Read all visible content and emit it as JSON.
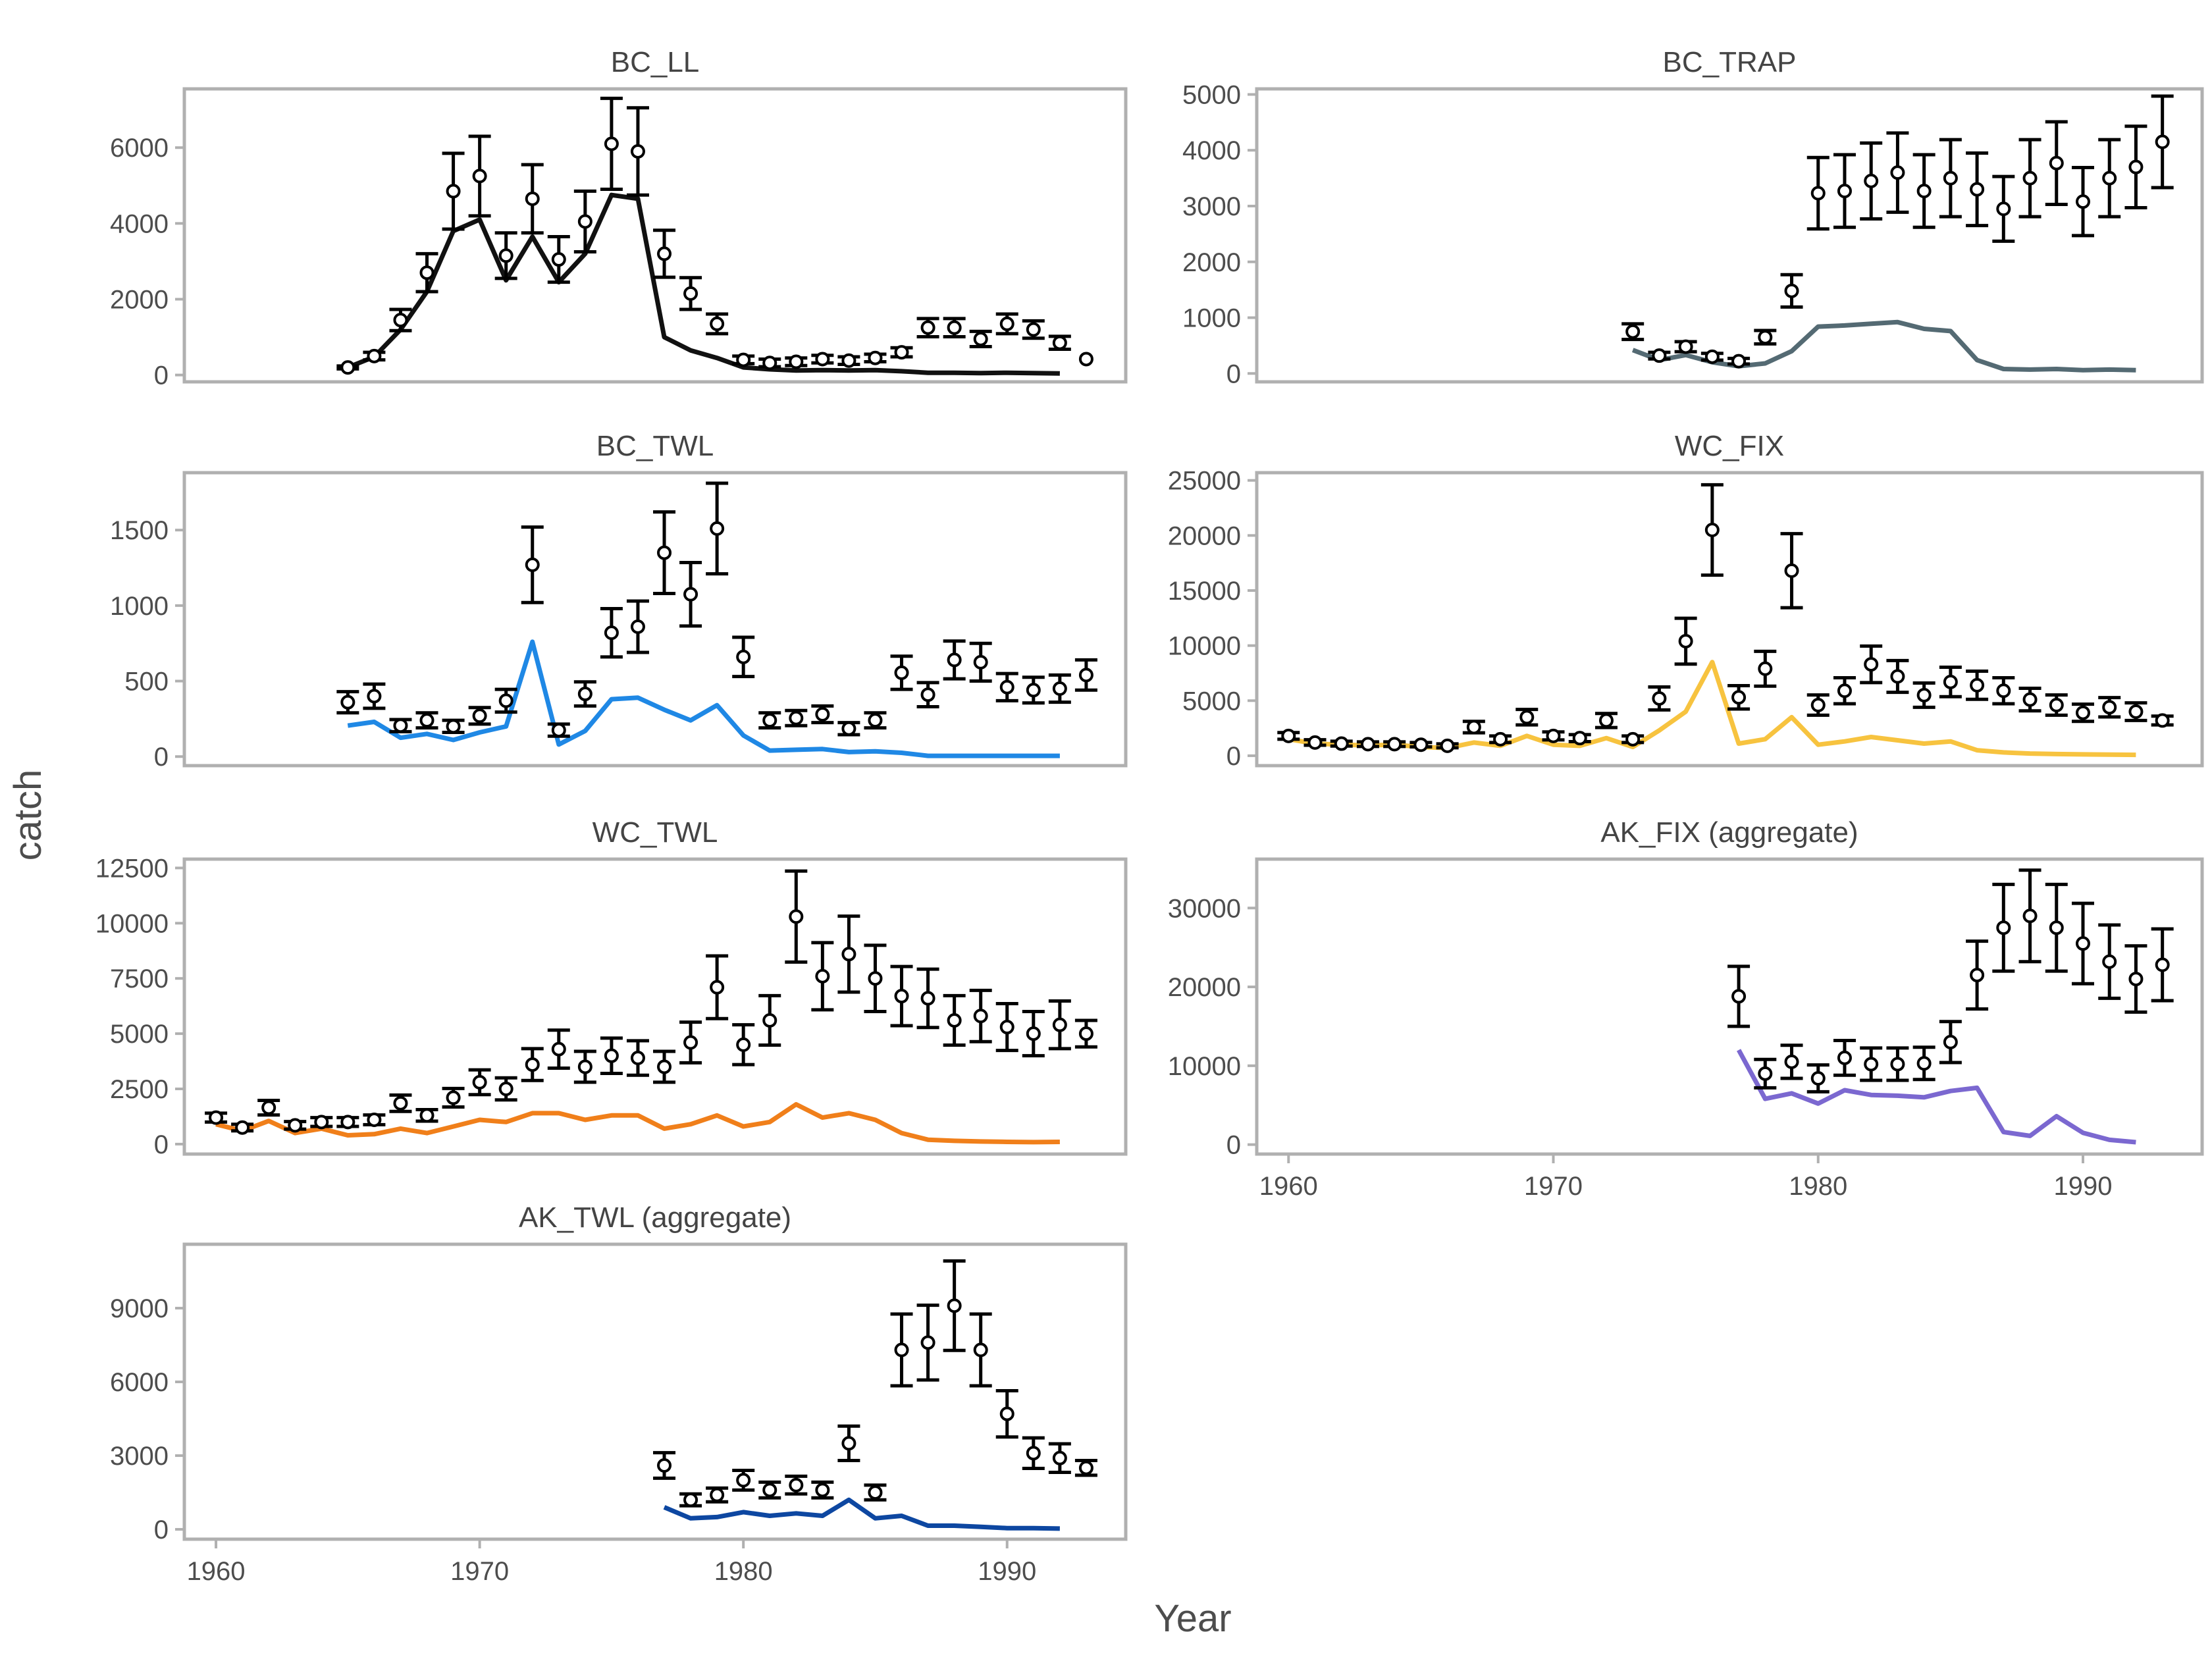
{
  "chart_data": {
    "type": "line",
    "xlabel": "Year",
    "ylabel": "catch",
    "x_ticks": [
      1960,
      1970,
      1980,
      1990
    ],
    "xlim": [
      1958.8,
      1994.5
    ],
    "series_legend": {
      "observed": "points with error bars",
      "predicted": "colored line"
    },
    "panels": [
      {
        "title": "BC_LL",
        "color": "#111111",
        "ylim": [
          -180,
          7550
        ],
        "y_ticks": [
          0,
          2000,
          4000,
          6000
        ],
        "observed": {
          "years": [
            1965,
            1966,
            1967,
            1968,
            1969,
            1970,
            1971,
            1972,
            1973,
            1974,
            1975,
            1976,
            1977,
            1978,
            1979,
            1980,
            1981,
            1982,
            1983,
            1984,
            1985,
            1986,
            1987,
            1988,
            1989,
            1990,
            1991,
            1992,
            1993
          ],
          "values": [
            200,
            500,
            1450,
            2700,
            4850,
            5250,
            3150,
            4650,
            3050,
            4050,
            6100,
            5900,
            3200,
            2150,
            1350,
            400,
            320,
            350,
            420,
            380,
            450,
            600,
            1250,
            1250,
            950,
            1350,
            1200,
            850,
            420
          ],
          "errors": [
            40,
            100,
            280,
            500,
            1000,
            1050,
            600,
            900,
            600,
            800,
            1200,
            1150,
            620,
            420,
            260,
            100,
            100,
            100,
            100,
            100,
            100,
            120,
            240,
            240,
            200,
            260,
            230,
            170,
            0
          ]
        },
        "predicted": {
          "years": [
            1965,
            1966,
            1967,
            1968,
            1969,
            1970,
            1971,
            1972,
            1973,
            1974,
            1975,
            1976,
            1977,
            1978,
            1979,
            1980,
            1981,
            1982,
            1983,
            1984,
            1985,
            1986,
            1987,
            1988,
            1989,
            1990,
            1991,
            1992
          ],
          "values": [
            200,
            480,
            1200,
            2200,
            3800,
            4100,
            2500,
            3650,
            2450,
            3200,
            4750,
            4650,
            1000,
            650,
            450,
            200,
            150,
            120,
            130,
            120,
            130,
            100,
            60,
            60,
            50,
            60,
            50,
            40
          ]
        }
      },
      {
        "title": "BC_TRAP",
        "color": "#546a73",
        "ylim": [
          -150,
          5100
        ],
        "y_ticks": [
          0,
          1000,
          2000,
          3000,
          4000,
          5000
        ],
        "observed": {
          "years": [
            1973,
            1974,
            1975,
            1976,
            1977,
            1978,
            1979,
            1980,
            1981,
            1982,
            1983,
            1984,
            1985,
            1986,
            1987,
            1988,
            1989,
            1990,
            1991,
            1992,
            1993
          ],
          "values": [
            750,
            320,
            480,
            300,
            220,
            650,
            1480,
            3230,
            3270,
            3450,
            3600,
            3270,
            3500,
            3300,
            2950,
            3500,
            3770,
            3080,
            3500,
            3700,
            4150
          ],
          "errors": [
            140,
            60,
            90,
            60,
            50,
            120,
            290,
            640,
            650,
            680,
            710,
            650,
            690,
            650,
            580,
            690,
            740,
            610,
            690,
            730,
            820
          ]
        },
        "predicted": {
          "years": [
            1973,
            1974,
            1975,
            1976,
            1977,
            1978,
            1979,
            1980,
            1981,
            1982,
            1983,
            1984,
            1985,
            1986,
            1987,
            1988,
            1989,
            1990,
            1991,
            1992
          ],
          "values": [
            420,
            240,
            330,
            200,
            130,
            180,
            400,
            840,
            860,
            890,
            920,
            800,
            760,
            240,
            80,
            70,
            80,
            60,
            70,
            60
          ]
        }
      },
      {
        "title": "BC_TWL",
        "color": "#1f88e5",
        "ylim": [
          -60,
          1880
        ],
        "y_ticks": [
          0,
          500,
          1000,
          1500
        ],
        "observed": {
          "years": [
            1965,
            1966,
            1967,
            1968,
            1969,
            1970,
            1971,
            1972,
            1973,
            1974,
            1975,
            1976,
            1977,
            1978,
            1979,
            1980,
            1981,
            1982,
            1983,
            1984,
            1985,
            1986,
            1987,
            1988,
            1989,
            1990,
            1991,
            1992,
            1993
          ],
          "values": [
            360,
            400,
            205,
            240,
            200,
            270,
            370,
            1270,
            175,
            415,
            820,
            860,
            1350,
            1075,
            1510,
            660,
            240,
            255,
            280,
            185,
            240,
            555,
            410,
            640,
            625,
            460,
            440,
            450,
            540
          ],
          "errors": [
            70,
            80,
            40,
            50,
            40,
            55,
            75,
            250,
            40,
            80,
            160,
            170,
            270,
            210,
            300,
            130,
            50,
            50,
            55,
            40,
            50,
            110,
            80,
            125,
            125,
            90,
            85,
            90,
            100
          ]
        },
        "predicted": {
          "years": [
            1965,
            1966,
            1967,
            1968,
            1969,
            1970,
            1971,
            1972,
            1973,
            1974,
            1975,
            1976,
            1977,
            1978,
            1979,
            1980,
            1981,
            1982,
            1983,
            1984,
            1985,
            1986,
            1987,
            1988,
            1989,
            1990,
            1991,
            1992
          ],
          "values": [
            205,
            230,
            125,
            150,
            110,
            160,
            200,
            760,
            80,
            170,
            380,
            390,
            310,
            240,
            340,
            140,
            40,
            45,
            50,
            30,
            35,
            25,
            5,
            5,
            5,
            5,
            5,
            5
          ]
        }
      },
      {
        "title": "WC_FIX",
        "color": "#f7c33f",
        "ylim": [
          -900,
          25700
        ],
        "y_ticks": [
          0,
          5000,
          10000,
          15000,
          20000,
          25000
        ],
        "observed": {
          "years": [
            1960,
            1961,
            1962,
            1963,
            1964,
            1965,
            1966,
            1967,
            1968,
            1969,
            1970,
            1971,
            1972,
            1973,
            1974,
            1975,
            1976,
            1977,
            1978,
            1979,
            1980,
            1981,
            1982,
            1983,
            1984,
            1985,
            1986,
            1987,
            1988,
            1989,
            1990,
            1991,
            1992,
            1993
          ],
          "values": [
            1800,
            1200,
            1100,
            1050,
            1050,
            1000,
            900,
            2600,
            1500,
            3500,
            1800,
            1600,
            3200,
            1500,
            5200,
            10400,
            20500,
            5300,
            7900,
            16800,
            4600,
            5900,
            8300,
            7200,
            5500,
            6700,
            6400,
            5900,
            5100,
            4600,
            3900,
            4400,
            4000,
            3200
          ],
          "errors": [
            300,
            250,
            220,
            210,
            210,
            200,
            180,
            520,
            300,
            700,
            360,
            320,
            640,
            300,
            1040,
            2080,
            4100,
            1060,
            1580,
            3360,
            920,
            1180,
            1660,
            1440,
            1100,
            1340,
            1280,
            1180,
            1020,
            920,
            780,
            880,
            800,
            400
          ]
        },
        "predicted": {
          "years": [
            1960,
            1961,
            1962,
            1963,
            1964,
            1965,
            1966,
            1967,
            1968,
            1969,
            1970,
            1971,
            1972,
            1973,
            1974,
            1975,
            1976,
            1977,
            1978,
            1979,
            1980,
            1981,
            1982,
            1983,
            1984,
            1985,
            1986,
            1987,
            1988,
            1989,
            1990,
            1991,
            1992
          ],
          "values": [
            1500,
            1100,
            1000,
            950,
            1000,
            800,
            700,
            1200,
            900,
            1800,
            1000,
            900,
            1600,
            800,
            2300,
            4000,
            8500,
            1100,
            1500,
            3500,
            1000,
            1300,
            1700,
            1400,
            1100,
            1300,
            500,
            300,
            200,
            150,
            120,
            100,
            80
          ]
        }
      },
      {
        "title": "WC_TWL",
        "color": "#f07f1a",
        "ylim": [
          -450,
          12900
        ],
        "y_ticks": [
          0,
          2500,
          5000,
          7500,
          10000,
          12500
        ],
        "observed": {
          "years": [
            1960,
            1961,
            1962,
            1963,
            1964,
            1965,
            1966,
            1967,
            1968,
            1969,
            1970,
            1971,
            1972,
            1973,
            1974,
            1975,
            1976,
            1977,
            1978,
            1979,
            1980,
            1981,
            1982,
            1983,
            1984,
            1985,
            1986,
            1987,
            1988,
            1989,
            1990,
            1991,
            1992,
            1993
          ],
          "values": [
            1200,
            750,
            1650,
            850,
            1000,
            1000,
            1100,
            1850,
            1300,
            2100,
            2800,
            2500,
            3600,
            4300,
            3500,
            4000,
            3900,
            3500,
            4600,
            7100,
            4500,
            5600,
            10300,
            7600,
            8600,
            7500,
            6700,
            6600,
            5600,
            5800,
            5300,
            5000,
            5400,
            5000
          ],
          "errors": [
            200,
            150,
            330,
            170,
            200,
            200,
            220,
            370,
            260,
            420,
            560,
            500,
            720,
            860,
            700,
            800,
            780,
            700,
            920,
            1420,
            900,
            1120,
            2060,
            1520,
            1720,
            1500,
            1340,
            1320,
            1120,
            1160,
            1060,
            1000,
            1080,
            600
          ]
        },
        "predicted": {
          "years": [
            1960,
            1961,
            1962,
            1963,
            1964,
            1965,
            1966,
            1967,
            1968,
            1969,
            1970,
            1971,
            1972,
            1973,
            1974,
            1975,
            1976,
            1977,
            1978,
            1979,
            1980,
            1981,
            1982,
            1983,
            1984,
            1985,
            1986,
            1987,
            1988,
            1989,
            1990,
            1991,
            1992
          ],
          "values": [
            900,
            600,
            1050,
            500,
            700,
            400,
            450,
            700,
            500,
            800,
            1100,
            1000,
            1400,
            1400,
            1100,
            1300,
            1300,
            700,
            900,
            1300,
            800,
            1000,
            1800,
            1200,
            1400,
            1100,
            500,
            200,
            150,
            120,
            100,
            90,
            100
          ]
        }
      },
      {
        "title": "AK_FIX (aggregate)",
        "color": "#7b68d0",
        "ylim": [
          -1200,
          36200
        ],
        "y_ticks": [
          0,
          10000,
          20000,
          30000
        ],
        "observed": {
          "years": [
            1977,
            1978,
            1979,
            1980,
            1981,
            1982,
            1983,
            1984,
            1985,
            1986,
            1987,
            1988,
            1989,
            1990,
            1991,
            1992,
            1993
          ],
          "values": [
            18800,
            9000,
            10500,
            8400,
            11000,
            10200,
            10200,
            10300,
            13000,
            21500,
            27500,
            29000,
            27500,
            25500,
            23200,
            21000,
            22800
          ],
          "errors": [
            3800,
            1800,
            2100,
            1700,
            2200,
            2050,
            2050,
            2050,
            2600,
            4300,
            5500,
            5800,
            5500,
            5100,
            4650,
            4200,
            4550
          ]
        },
        "predicted": {
          "years": [
            1977,
            1978,
            1979,
            1980,
            1981,
            1982,
            1983,
            1984,
            1985,
            1986,
            1987,
            1988,
            1989,
            1990,
            1991,
            1992
          ],
          "values": [
            12000,
            5800,
            6500,
            5200,
            6900,
            6300,
            6200,
            6000,
            6800,
            7200,
            1600,
            1100,
            3600,
            1500,
            600,
            300
          ]
        }
      },
      {
        "title": "AK_TWL (aggregate)",
        "color": "#0d47a1",
        "ylim": [
          -400,
          11600
        ],
        "y_ticks": [
          0,
          3000,
          6000,
          9000
        ],
        "observed": {
          "years": [
            1977,
            1978,
            1979,
            1980,
            1981,
            1982,
            1983,
            1984,
            1985,
            1986,
            1987,
            1988,
            1989,
            1990,
            1991,
            1992,
            1993
          ],
          "values": [
            2600,
            1200,
            1400,
            2000,
            1600,
            1800,
            1600,
            3500,
            1500,
            7300,
            7600,
            9100,
            7300,
            4700,
            3100,
            2900,
            2500
          ],
          "errors": [
            520,
            240,
            280,
            400,
            320,
            360,
            320,
            700,
            300,
            1460,
            1520,
            1820,
            1460,
            940,
            620,
            580,
            300
          ]
        },
        "predicted": {
          "years": [
            1977,
            1978,
            1979,
            1980,
            1981,
            1982,
            1983,
            1984,
            1985,
            1986,
            1987,
            1988,
            1989,
            1990,
            1991,
            1992
          ],
          "values": [
            900,
            450,
            500,
            700,
            550,
            650,
            550,
            1200,
            450,
            550,
            150,
            150,
            100,
            50,
            50,
            30
          ]
        }
      }
    ]
  }
}
